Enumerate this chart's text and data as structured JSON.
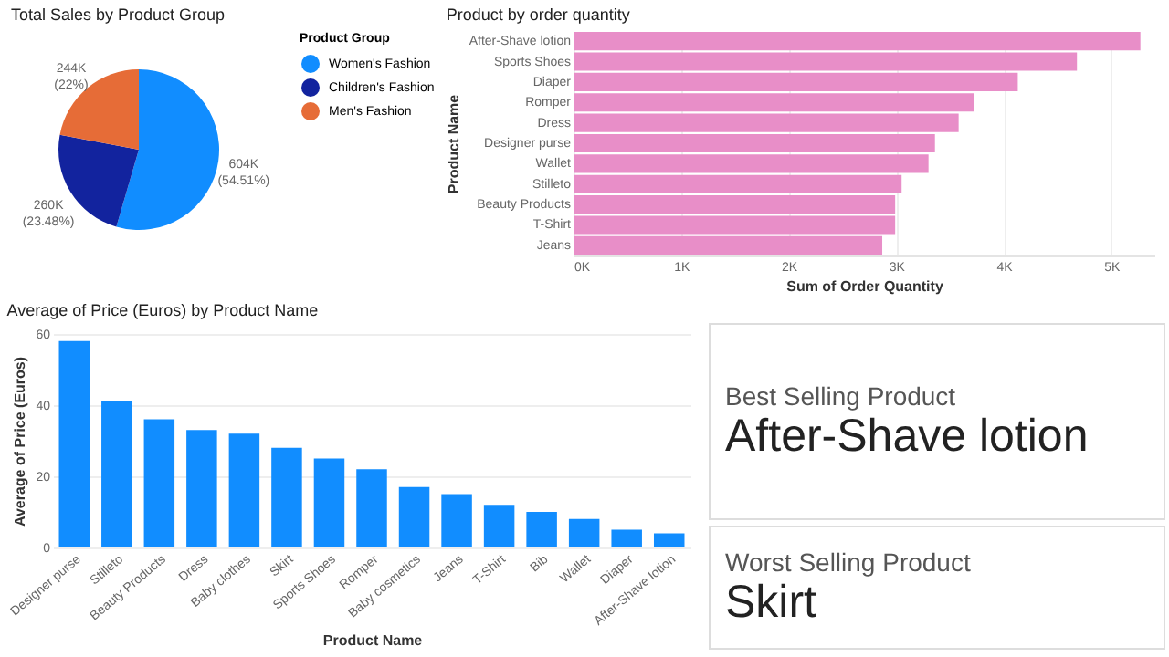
{
  "chart_data": [
    {
      "type": "pie",
      "title": "Total Sales by Product Group",
      "legend_title": "Product Group",
      "legend": "right",
      "categories": [
        "Women's Fashion",
        "Children's Fashion",
        "Men's Fashion"
      ],
      "values": [
        604000,
        260000,
        244000
      ],
      "value_labels": [
        "604K (54.51%)",
        "260K (23.48%)",
        "244K (22%)"
      ],
      "colors": [
        "#118dff",
        "#12239e",
        "#e66c37"
      ]
    },
    {
      "type": "bar",
      "orientation": "horizontal",
      "title": "Product by order quantity",
      "xlabel": "Sum of Order Quantity",
      "ylabel": "Product Name",
      "categories": [
        "After-Shave lotion",
        "Sports Shoes",
        "Diaper",
        "Romper",
        "Dress",
        "Designer purse",
        "Wallet",
        "Stilleto",
        "Beauty Products",
        "T-Shirt",
        "Jeans"
      ],
      "series": [
        {
          "color": "#e88ec8",
          "values": [
            5270,
            4680,
            4130,
            3720,
            3580,
            3360,
            3300,
            3050,
            2990,
            2990,
            2870
          ]
        }
      ],
      "xlim": [
        0,
        5400
      ],
      "xticks": [
        {
          "value": 0,
          "label": "0K"
        },
        {
          "value": 1000,
          "label": "1K"
        },
        {
          "value": 2000,
          "label": "2K"
        },
        {
          "value": 3000,
          "label": "3K"
        },
        {
          "value": 4000,
          "label": "4K"
        },
        {
          "value": 5000,
          "label": "5K"
        }
      ],
      "grid": "x"
    },
    {
      "type": "bar",
      "title": "Average of Price (Euros) by Product Name",
      "xlabel": "Product Name",
      "ylabel": "Average of Price (Euros)",
      "categories": [
        "Designer purse",
        "Stilleto",
        "Beauty Products",
        "Dress",
        "Baby clothes",
        "Skirt",
        "Sports Shoes",
        "Romper",
        "Baby cosmetics",
        "Jeans",
        "T-Shirt",
        "Bib",
        "Wallet",
        "Diaper",
        "After-Shave lotion"
      ],
      "series": [
        {
          "color": "#118dff",
          "values": [
            58,
            41,
            36,
            33,
            32,
            28,
            25,
            22,
            17,
            15,
            12,
            10,
            8,
            5,
            4
          ]
        }
      ],
      "ylim": [
        0,
        60
      ],
      "yticks": [
        0,
        20,
        40,
        60
      ],
      "grid": "y"
    },
    {
      "type": "other",
      "title": "Best Selling Product",
      "annotations": [
        "After-Shave lotion"
      ]
    },
    {
      "type": "other",
      "title": "Worst Selling Product",
      "annotations": [
        "Skirt"
      ]
    }
  ]
}
